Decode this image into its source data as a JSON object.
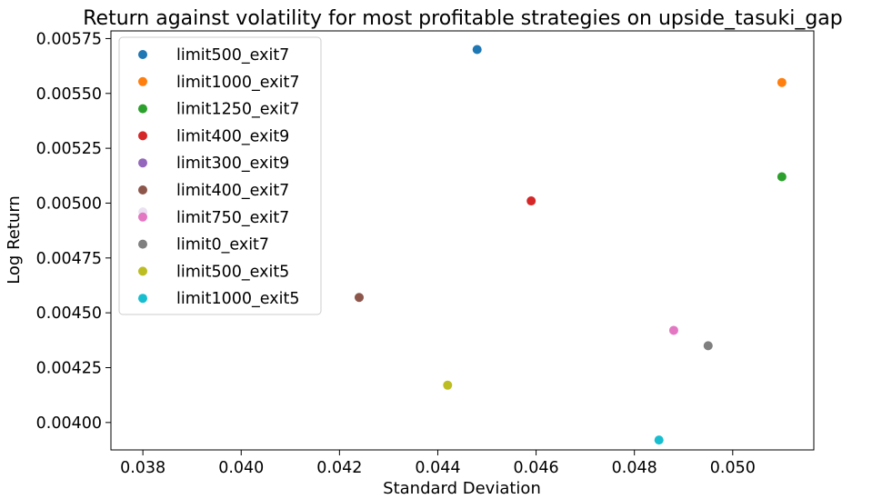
{
  "chart_data": {
    "type": "scatter",
    "title": "Return against volatility for most profitable strategies on upside_tasuki_gap",
    "xlabel": "Standard Deviation",
    "ylabel": "Log Return",
    "xlim": [
      0.03735,
      0.05165
    ],
    "ylim": [
      0.003875,
      0.005785
    ],
    "xticks": [
      0.038,
      0.04,
      0.042,
      0.044,
      0.046,
      0.048,
      0.05
    ],
    "xtick_labels": [
      "0.038",
      "0.040",
      "0.042",
      "0.044",
      "0.046",
      "0.048",
      "0.050"
    ],
    "yticks": [
      0.004,
      0.00425,
      0.0045,
      0.00475,
      0.005,
      0.00525,
      0.0055,
      0.00575
    ],
    "ytick_labels": [
      "0.00400",
      "0.00425",
      "0.00450",
      "0.00475",
      "0.00500",
      "0.00525",
      "0.00550",
      "0.00575"
    ],
    "grid": false,
    "legend_position": "top-left",
    "series": [
      {
        "name": "limit500_exit7",
        "color": "#1f77b4",
        "x": 0.0448,
        "y": 0.0057
      },
      {
        "name": "limit1000_exit7",
        "color": "#ff7f0e",
        "x": 0.051,
        "y": 0.00555
      },
      {
        "name": "limit1250_exit7",
        "color": "#2ca02c",
        "x": 0.051,
        "y": 0.00512
      },
      {
        "name": "limit400_exit9",
        "color": "#d62728",
        "x": 0.0459,
        "y": 0.00501
      },
      {
        "name": "limit300_exit9",
        "color": "#9467bd",
        "x": 0.038,
        "y": 0.00496
      },
      {
        "name": "limit400_exit7",
        "color": "#8c564b",
        "x": 0.0424,
        "y": 0.00457
      },
      {
        "name": "limit750_exit7",
        "color": "#e377c2",
        "x": 0.0488,
        "y": 0.00442
      },
      {
        "name": "limit0_exit7",
        "color": "#7f7f7f",
        "x": 0.0495,
        "y": 0.00435
      },
      {
        "name": "limit500_exit5",
        "color": "#bcbd22",
        "x": 0.0442,
        "y": 0.00417
      },
      {
        "name": "limit1000_exit5",
        "color": "#17becf",
        "x": 0.0485,
        "y": 0.00392
      }
    ]
  }
}
